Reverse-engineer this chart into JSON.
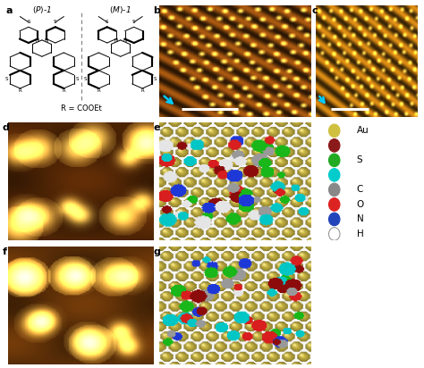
{
  "bg_color": "#ffffff",
  "stm_b_base": [
    0.42,
    0.22,
    0.04
  ],
  "stm_c_base": [
    0.55,
    0.35,
    0.05
  ],
  "stm_d_base": [
    0.3,
    0.14,
    0.02
  ],
  "au_color": [
    0.83,
    0.75,
    0.28
  ],
  "legend": [
    {
      "name": "Au",
      "color": "#CFC040",
      "filled": true
    },
    {
      "name": "S",
      "color": "#8B1A1A",
      "filled": true
    },
    {
      "name": "S",
      "color": "#22AA22",
      "filled": true
    },
    {
      "name": "C",
      "color": "#00CCCC",
      "filled": true
    },
    {
      "name": "C",
      "color": "#888888",
      "filled": true
    },
    {
      "name": "O",
      "color": "#DD2222",
      "filled": true
    },
    {
      "name": "N",
      "color": "#2244BB",
      "filled": true
    },
    {
      "name": "H",
      "color": "#DDDDDD",
      "filled": false
    }
  ],
  "legend_display": [
    "Au",
    "",
    "S",
    "",
    "C",
    "O",
    "N",
    "H"
  ]
}
